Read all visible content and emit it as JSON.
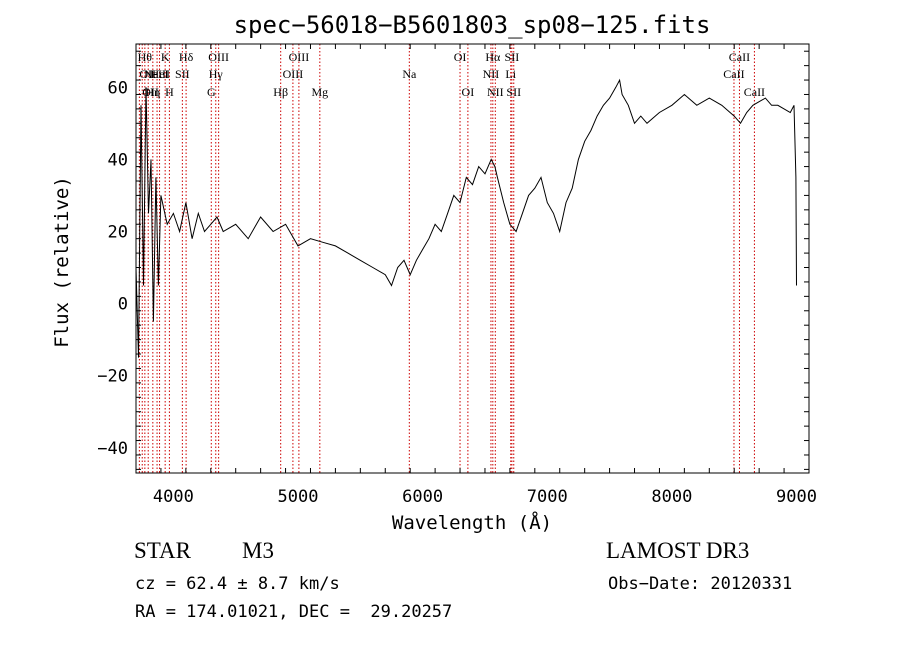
{
  "chart_data": {
    "type": "line",
    "title": "spec−56018−B5601803_sp08−125.fits",
    "xlabel": "Wavelength (Å)",
    "ylabel": "Flux (relative)",
    "xlim": [
      3700,
      9100
    ],
    "ylim": [
      -47,
      72
    ],
    "xticks": [
      4000,
      5000,
      6000,
      7000,
      8000,
      9000
    ],
    "xtick_labels": [
      "4000",
      "5000",
      "6000",
      "7000",
      "8000",
      "9000"
    ],
    "yticks": [
      -40,
      -20,
      0,
      20,
      40,
      60
    ],
    "ytick_labels": [
      "−40",
      "−20",
      "0",
      "20",
      "40",
      "60"
    ],
    "series": [
      {
        "name": "spectrum",
        "color": "#000000",
        "x": [
          3700,
          3720,
          3740,
          3760,
          3780,
          3800,
          3820,
          3840,
          3860,
          3880,
          3900,
          3950,
          4000,
          4050,
          4100,
          4150,
          4200,
          4250,
          4300,
          4350,
          4400,
          4500,
          4600,
          4700,
          4800,
          4900,
          5000,
          5100,
          5200,
          5300,
          5400,
          5500,
          5600,
          5700,
          5750,
          5800,
          5850,
          5900,
          5950,
          6000,
          6050,
          6100,
          6150,
          6200,
          6250,
          6300,
          6350,
          6400,
          6450,
          6500,
          6550,
          6580,
          6600,
          6650,
          6700,
          6750,
          6800,
          6850,
          6900,
          6950,
          7000,
          7050,
          7100,
          7150,
          7200,
          7250,
          7300,
          7350,
          7400,
          7450,
          7500,
          7550,
          7580,
          7600,
          7650,
          7700,
          7750,
          7800,
          7900,
          8000,
          8100,
          8200,
          8300,
          8400,
          8500,
          8550,
          8600,
          8650,
          8700,
          8750,
          8800,
          8850,
          8900,
          8950,
          8980,
          8995,
          9000
        ],
        "y": [
          10,
          -15,
          55,
          5,
          60,
          25,
          40,
          -5,
          35,
          5,
          30,
          22,
          25,
          20,
          28,
          18,
          25,
          20,
          22,
          24,
          20,
          22,
          18,
          24,
          20,
          22,
          16,
          18,
          17,
          16,
          14,
          12,
          10,
          8,
          5,
          10,
          12,
          8,
          12,
          15,
          18,
          22,
          20,
          25,
          30,
          28,
          35,
          33,
          38,
          36,
          40,
          38,
          35,
          28,
          22,
          20,
          25,
          30,
          32,
          35,
          28,
          25,
          20,
          28,
          32,
          40,
          45,
          48,
          52,
          55,
          57,
          60,
          62,
          58,
          55,
          50,
          52,
          50,
          53,
          55,
          58,
          55,
          57,
          55,
          52,
          50,
          53,
          55,
          56,
          57,
          55,
          55,
          54,
          53,
          55,
          35,
          5
        ]
      }
    ],
    "line_markers": [
      {
        "x": 3727,
        "label": "OII",
        "row": 2,
        "anchor": "start"
      },
      {
        "x": 3750,
        "label": "OII",
        "row": 3,
        "anchor": "start"
      },
      {
        "x": 3771,
        "label": "Hθ",
        "row": 1,
        "anchor": "middle"
      },
      {
        "x": 3798,
        "label": "",
        "row": 0,
        "anchor": "middle"
      },
      {
        "x": 3835,
        "label": "Hη",
        "row": 3,
        "anchor": "middle"
      },
      {
        "x": 3869,
        "label": "NeIII",
        "row": 2,
        "anchor": "middle"
      },
      {
        "x": 3889,
        "label": "HeI",
        "row": 2,
        "anchor": "middle"
      },
      {
        "x": 3934,
        "label": "K",
        "row": 1,
        "anchor": "middle"
      },
      {
        "x": 3968,
        "label": "H",
        "row": 3,
        "anchor": "middle"
      },
      {
        "x": 4072,
        "label": "SII",
        "row": 2,
        "anchor": "middle"
      },
      {
        "x": 4102,
        "label": "Hδ",
        "row": 1,
        "anchor": "middle"
      },
      {
        "x": 4304,
        "label": "G",
        "row": 3,
        "anchor": "middle"
      },
      {
        "x": 4340,
        "label": "Hγ",
        "row": 2,
        "anchor": "middle"
      },
      {
        "x": 4363,
        "label": "OIII",
        "row": 1,
        "anchor": "middle"
      },
      {
        "x": 4861,
        "label": "Hβ",
        "row": 3,
        "anchor": "middle"
      },
      {
        "x": 4959,
        "label": "OIII",
        "row": 2,
        "anchor": "middle"
      },
      {
        "x": 5007,
        "label": "OIII",
        "row": 1,
        "anchor": "middle"
      },
      {
        "x": 5175,
        "label": "Mg",
        "row": 3,
        "anchor": "middle"
      },
      {
        "x": 5893,
        "label": "Na",
        "row": 2,
        "anchor": "middle"
      },
      {
        "x": 6300,
        "label": "OI",
        "row": 1,
        "anchor": "middle"
      },
      {
        "x": 6363,
        "label": "OI",
        "row": 3,
        "anchor": "middle"
      },
      {
        "x": 6548,
        "label": "NII",
        "row": 2,
        "anchor": "middle"
      },
      {
        "x": 6563,
        "label": "Hα",
        "row": 1,
        "anchor": "middle"
      },
      {
        "x": 6583,
        "label": "NII",
        "row": 3,
        "anchor": "middle"
      },
      {
        "x": 6707,
        "label": "Li",
        "row": 2,
        "anchor": "middle"
      },
      {
        "x": 6716,
        "label": "SII",
        "row": 1,
        "anchor": "middle"
      },
      {
        "x": 6731,
        "label": "SII",
        "row": 3,
        "anchor": "middle"
      },
      {
        "x": 8498,
        "label": "CaII",
        "row": 2,
        "anchor": "middle"
      },
      {
        "x": 8542,
        "label": "CaII",
        "row": 1,
        "anchor": "middle"
      },
      {
        "x": 8662,
        "label": "CaII",
        "row": 3,
        "anchor": "middle"
      }
    ],
    "marker_color": "#cc0000"
  },
  "info": {
    "object_class": "STAR",
    "subclass": "M3",
    "survey": "LAMOST DR3",
    "cz_line": "cz = 62.4 ± 8.7 km/s",
    "obs_date_line": "Obs−Date: 20120331",
    "coords_line": "RA = 174.01021, DEC =  29.20257"
  }
}
